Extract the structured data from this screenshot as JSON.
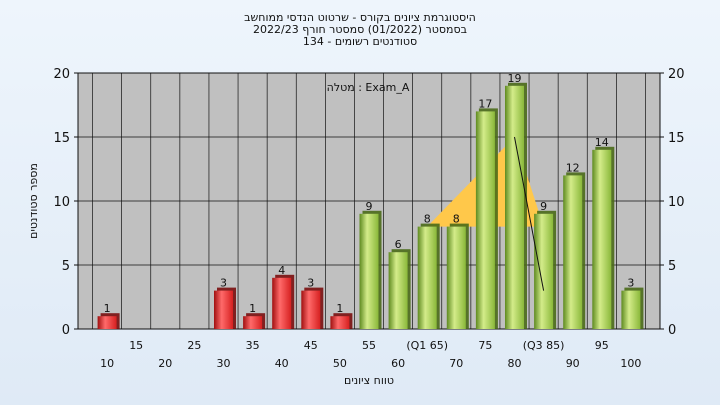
{
  "header": {
    "line1": "היסטוגרמת ציונים בקורס - שרטוט הנדסי ממוחשב",
    "line2": "בסמסטר  (01/2022)  סמסטר חורף 2022/23",
    "line3": "סטודנטים רשומים - 134"
  },
  "chart_data": {
    "type": "bar",
    "title": "היסטוגרמת ציונים בקורס - שרטוט הנדסי ממוחשב",
    "subtitle": "בסמסטר  (01/2022)  סמסטר חורף 2022/23",
    "xlabel": "טווח ציונים",
    "ylabel": "מספר סטודנטים",
    "ylim": [
      0,
      20
    ],
    "yticks": [
      0,
      5,
      10,
      15,
      20
    ],
    "annotation": "מטלה : Exam_A",
    "categories": [
      "10",
      "15",
      "20",
      "25",
      "30",
      "35",
      "40",
      "45",
      "50",
      "55",
      "60",
      "65",
      "70",
      "75",
      "80",
      "85",
      "90",
      "95",
      "100"
    ],
    "x_tick_labels": [
      "10",
      "15",
      "20",
      "25",
      "30",
      "35",
      "40",
      "45",
      "50",
      "55",
      "60",
      "(Q1 65)",
      "70",
      "75",
      "80",
      "(Q3 85)",
      "90",
      "95",
      "100"
    ],
    "values": [
      1,
      0,
      0,
      0,
      3,
      1,
      4,
      3,
      1,
      9,
      6,
      8,
      8,
      17,
      19,
      9,
      12,
      14,
      3
    ],
    "value_labels": [
      "1",
      "",
      "",
      "",
      "3",
      "1",
      "4",
      "3",
      "1",
      "9",
      "6",
      "8",
      "8",
      "17",
      "19",
      "9",
      "12",
      "14",
      "3"
    ],
    "fail_color": "#d62020",
    "pass_color": "#8ab83a",
    "quartile_area": {
      "color": "#ffc84a",
      "points": [
        {
          "x": "65",
          "y": 8
        },
        {
          "x": "80",
          "y": 15
        },
        {
          "x": "85",
          "y": 8
        }
      ]
    },
    "whisker": {
      "color": "#111111",
      "points": [
        {
          "x": "80",
          "y": 15
        },
        {
          "x": "85",
          "y": 3
        }
      ]
    },
    "plot_background": "#c0c0c0",
    "grid": true,
    "right_axis": true
  }
}
